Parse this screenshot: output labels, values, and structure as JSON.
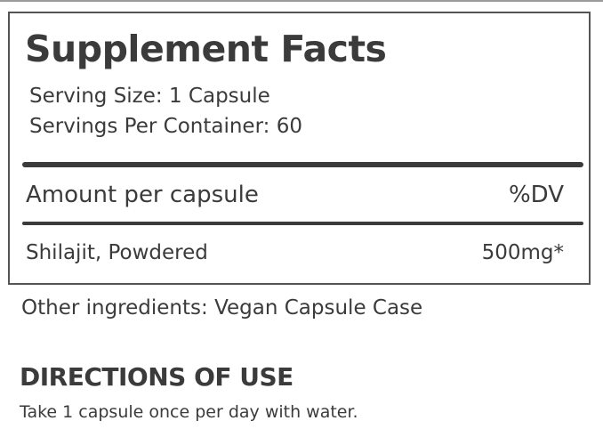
{
  "label": {
    "title": "Supplement Facts",
    "serving_size": "Serving Size: 1 Capsule",
    "servings_per_container": "Servings Per Container: 60",
    "header_left": "Amount per capsule",
    "header_right": "%DV",
    "ingredients": [
      {
        "name": "Shilajit, Powdered",
        "amount": "500mg*"
      }
    ]
  },
  "other_ingredients": "Other ingredients: Vegan Capsule Case",
  "directions": {
    "heading": "DIRECTIONS OF USE",
    "text": "Take 1 capsule once per day with water."
  },
  "colors": {
    "text": "#3b3b3b",
    "border": "#555555"
  }
}
